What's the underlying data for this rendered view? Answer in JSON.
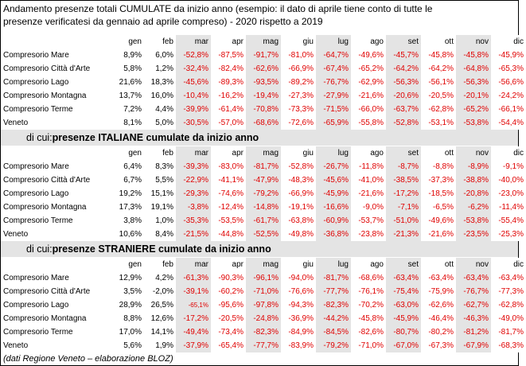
{
  "title": {
    "line1": "Andamento presenze totali CUMULATE da inizio anno (esempio: il dato di aprile tiene conto di tutte le",
    "line2": "presenze verificatesi da gennaio ad aprile compreso) - 2020 rispetto a 2019"
  },
  "months": [
    "gen",
    "feb",
    "mar",
    "apr",
    "mag",
    "giu",
    "lug",
    "ago",
    "set",
    "ott",
    "nov",
    "dic"
  ],
  "sections": [
    {
      "heading_prefix": "",
      "heading_bold": "",
      "rows": [
        {
          "label": "Compresorio Mare",
          "values": [
            "8,9%",
            "6,0%",
            "-52,8%",
            "-87,5%",
            "-91,7%",
            "-81,0%",
            "-64,7%",
            "-49,6%",
            "-45,7%",
            "-45,8%",
            "-45,8%",
            "-45,9%"
          ]
        },
        {
          "label": "Compresorio Città d'Arte",
          "values": [
            "5,8%",
            "1,2%",
            "-32,4%",
            "-82,4%",
            "-62,6%",
            "-66,9%",
            "-67,4%",
            "-65,2%",
            "-64,2%",
            "-64,2%",
            "-64,8%",
            "-65,3%"
          ]
        },
        {
          "label": "Compresorio Lago",
          "values": [
            "21,6%",
            "18,3%",
            "-45,6%",
            "-89,3%",
            "-93,5%",
            "-89,2%",
            "-76,7%",
            "-62,9%",
            "-56,3%",
            "-56,1%",
            "-56,3%",
            "-56,6%"
          ]
        },
        {
          "label": "Compresorio Montagna",
          "values": [
            "13,7%",
            "16,0%",
            "-10,4%",
            "-16,2%",
            "-19,4%",
            "-27,3%",
            "-27,9%",
            "-21,6%",
            "-20,6%",
            "-20,5%",
            "-20,1%",
            "-24,2%"
          ]
        },
        {
          "label": "Compresorio Terme",
          "values": [
            "7,2%",
            "4,4%",
            "-39,9%",
            "-61,4%",
            "-70,8%",
            "-73,3%",
            "-71,5%",
            "-66,0%",
            "-63,7%",
            "-62,8%",
            "-65,2%",
            "-66,1%"
          ]
        },
        {
          "label": "Veneto",
          "values": [
            "8,1%",
            "5,0%",
            "-30,5%",
            "-57,0%",
            "-68,6%",
            "-72,6%",
            "-65,9%",
            "-55,8%",
            "-52,8%",
            "-53,1%",
            "-53,8%",
            "-54,4%"
          ]
        }
      ]
    },
    {
      "heading_prefix": "di cui: ",
      "heading_bold": "presenze ITALIANE cumulate da inizio anno",
      "rows": [
        {
          "label": "Compresorio Mare",
          "values": [
            "6,4%",
            "8,3%",
            "-39,3%",
            "-83,0%",
            "-81,7%",
            "-52,8%",
            "-26,7%",
            "-11,8%",
            "-8,7%",
            "-8,8%",
            "-8,9%",
            "-9,1%"
          ]
        },
        {
          "label": "Compresorio Città d'Arte",
          "values": [
            "6,7%",
            "5,5%",
            "-22,9%",
            "-41,1%",
            "-47,9%",
            "-48,3%",
            "-45,6%",
            "-41,0%",
            "-38,5%",
            "-37,3%",
            "-38,8%",
            "-40,0%"
          ]
        },
        {
          "label": "Compresorio Lago",
          "values": [
            "19,2%",
            "15,1%",
            "-29,3%",
            "-74,6%",
            "-79,2%",
            "-66,9%",
            "-45,9%",
            "-21,6%",
            "-17,2%",
            "-18,5%",
            "-20,8%",
            "-23,0%"
          ]
        },
        {
          "label": "Compresorio Montagna",
          "values": [
            "17,3%",
            "19,1%",
            "-3,8%",
            "-12,4%",
            "-14,8%",
            "-19,1%",
            "-16,6%",
            "-9,0%",
            "-7,1%",
            "-6,5%",
            "-6,2%",
            "-11,4%"
          ]
        },
        {
          "label": "Compresorio Terme",
          "values": [
            "3,8%",
            "1,0%",
            "-35,3%",
            "-53,5%",
            "-61,7%",
            "-63,8%",
            "-60,9%",
            "-53,7%",
            "-51,0%",
            "-49,6%",
            "-53,8%",
            "-55,4%"
          ]
        },
        {
          "label": "Veneto",
          "values": [
            "10,6%",
            "8,4%",
            "-21,5%",
            "-44,8%",
            "-52,5%",
            "-49,8%",
            "-36,8%",
            "-23,8%",
            "-21,3%",
            "-21,6%",
            "-23,5%",
            "-25,3%"
          ]
        }
      ]
    },
    {
      "heading_prefix": "di cui: ",
      "heading_bold": "presenze STRANIERE cumulate da inizio anno",
      "rows": [
        {
          "label": "Compresorio Mare",
          "values": [
            "12,9%",
            "4,2%",
            "-61,3%",
            "-90,3%",
            "-96,1%",
            "-94,0%",
            "-81,7%",
            "-68,6%",
            "-63,4%",
            "-63,4%",
            "-63,4%",
            "-63,4%"
          ]
        },
        {
          "label": "Compresorio Città d'Arte",
          "values": [
            "3,5%",
            "-2,0%",
            "-39,1%",
            "-60,2%",
            "-71,0%",
            "-76,6%",
            "-77,7%",
            "-76,1%",
            "-75,4%",
            "-75,9%",
            "-76,7%",
            "-77,3%"
          ]
        },
        {
          "label": "Compresorio Lago",
          "values": [
            "28,9%",
            "26,5%",
            "-65,1%",
            "-95,6%",
            "-97,8%",
            "-94,3%",
            "-82,3%",
            "-70,2%",
            "-63,0%",
            "-62,6%",
            "-62,7%",
            "-62,8%"
          ]
        },
        {
          "label": "Compresorio Montagna",
          "values": [
            "8,8%",
            "12,6%",
            "-17,2%",
            "-20,5%",
            "-24,8%",
            "-36,9%",
            "-44,2%",
            "-45,8%",
            "-45,9%",
            "-46,4%",
            "-46,3%",
            "-49,0%"
          ]
        },
        {
          "label": "Compresorio Terme",
          "values": [
            "17,0%",
            "14,1%",
            "-49,4%",
            "-73,4%",
            "-82,3%",
            "-84,9%",
            "-84,5%",
            "-82,6%",
            "-80,7%",
            "-80,2%",
            "-81,2%",
            "-81,7%"
          ]
        },
        {
          "label": "Veneto",
          "values": [
            "5,6%",
            "1,9%",
            "-37,9%",
            "-65,4%",
            "-77,7%",
            "-83,9%",
            "-79,2%",
            "-71,0%",
            "-67,0%",
            "-67,3%",
            "-67,9%",
            "-68,3%"
          ]
        }
      ]
    }
  ],
  "note": "(dati Regione Veneto – elaborazione BLOZ)"
}
